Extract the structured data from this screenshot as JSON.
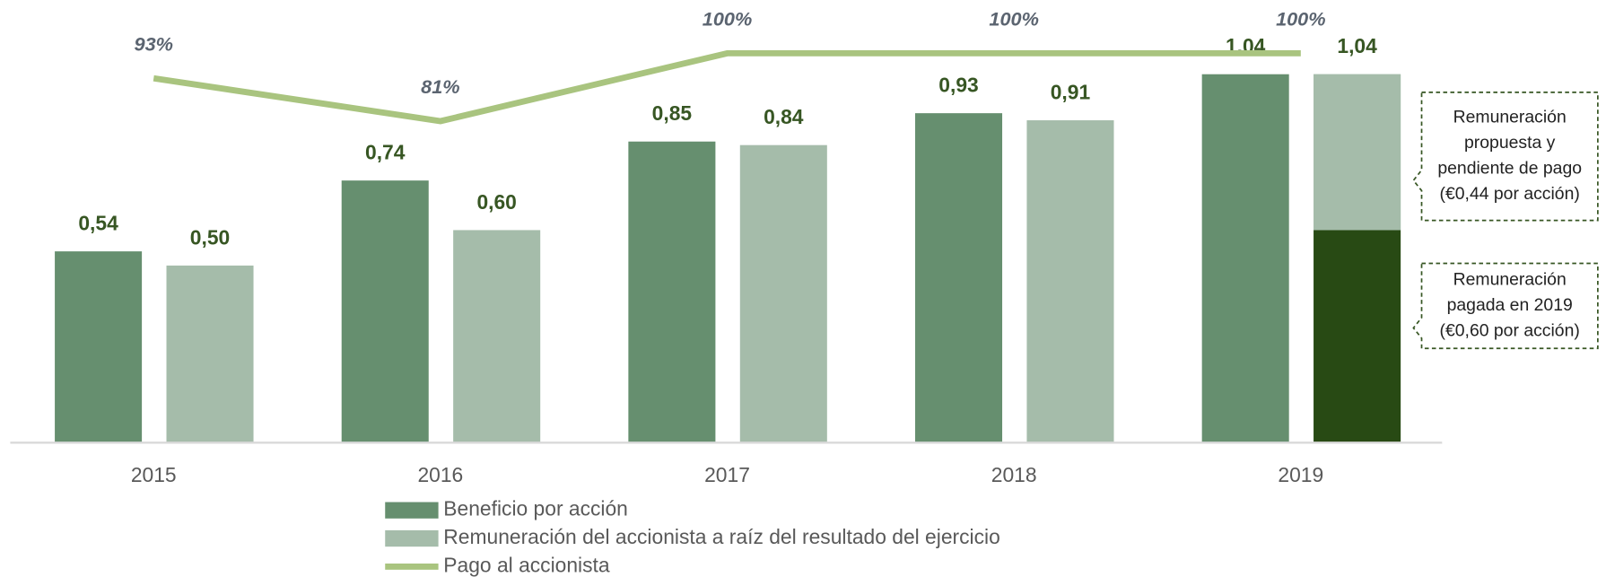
{
  "chart_data": {
    "type": "bar",
    "categories": [
      "2015",
      "2016",
      "2017",
      "2018",
      "2019"
    ],
    "ylim": [
      0,
      1.2
    ],
    "y2lim": [
      -9,
      110
    ],
    "series": [
      {
        "name": "Beneficio por acción",
        "color": "#668f6f",
        "values": [
          0.54,
          0.74,
          0.85,
          0.93,
          1.04
        ],
        "value_labels": [
          "0,54",
          "0,74",
          "0,85",
          "0,93",
          "1,04"
        ]
      },
      {
        "name": "Remuneración del accionista a raíz del resultado del ejercicio",
        "color": "#a5bcaa",
        "values": [
          0.5,
          0.6,
          0.84,
          0.91,
          1.04
        ],
        "value_labels": [
          "0,50",
          "0,60",
          "0,84",
          "0,91",
          "1,04"
        ]
      },
      {
        "name": "Pago al accionista",
        "type": "line",
        "axis": "y2",
        "color": "#a9c47f",
        "values": [
          93,
          81,
          100,
          100,
          100
        ],
        "value_labels": [
          "93%",
          "81%",
          "100%",
          "100%",
          "100%"
        ]
      }
    ],
    "stack_2019": [
      {
        "value": 0.6,
        "color": "#284a14",
        "lines": [
          "Remuneración",
          "pagada en 2019",
          "(€0,60 por acción)"
        ]
      },
      {
        "value": 0.44,
        "color": "#a5bcaa",
        "lines": [
          "Remuneración",
          "propuesta y",
          "pendiente de pago",
          "(€0,44 por acción)"
        ]
      }
    ]
  }
}
